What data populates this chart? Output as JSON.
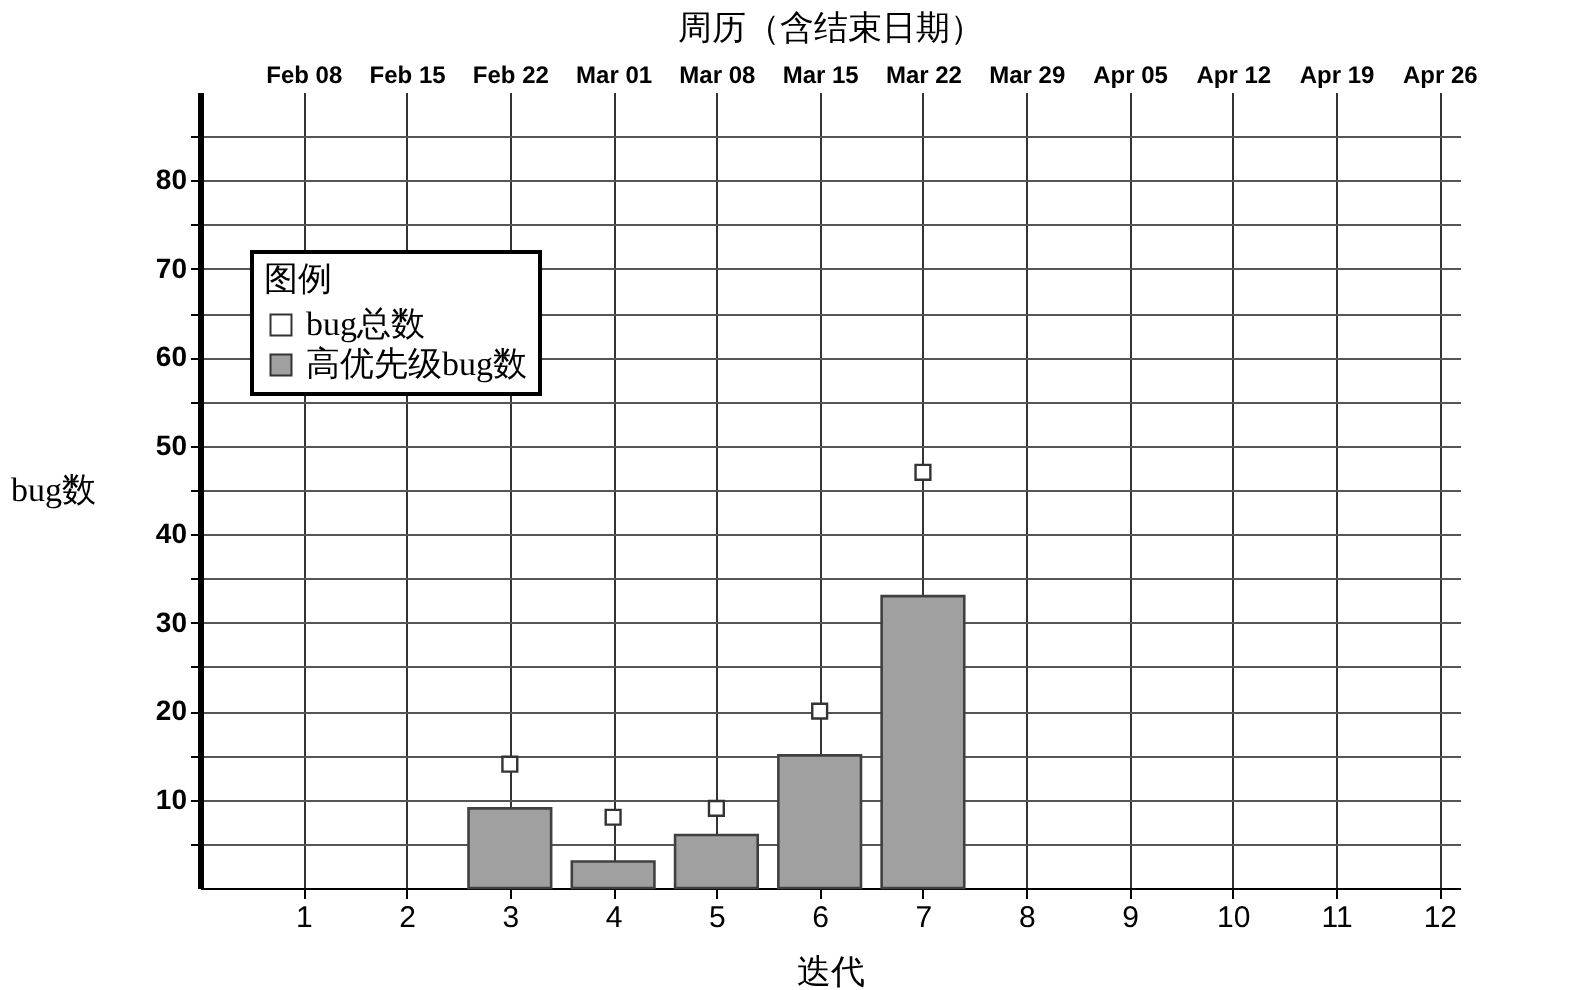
{
  "chart_data": {
    "type": "bar",
    "x2label": "周历（含结束日期）",
    "xlabel": "迭代",
    "ylabel": "bug数",
    "legend_title": "图例",
    "x": [
      3,
      4,
      5,
      6,
      7
    ],
    "series": [
      {
        "name": "bug总数",
        "type": "scatter",
        "marker": "square",
        "color": "#ffffff",
        "values": [
          14,
          8,
          9,
          20,
          47
        ]
      },
      {
        "name": "高优先级bug数",
        "type": "bar",
        "color": "#a0a0a0",
        "values": [
          9,
          3,
          6,
          15,
          33
        ]
      }
    ],
    "xlim": [
      0,
      12.2
    ],
    "xticks": [
      1,
      2,
      3,
      4,
      5,
      6,
      7,
      8,
      9,
      10,
      11,
      12
    ],
    "x2lim": [
      "--02-01",
      "--04-27T09:36"
    ],
    "x2ticks": [
      {
        "value": "--02-08",
        "label": "Feb 08"
      },
      {
        "value": "--02-15",
        "label": "Feb 15"
      },
      {
        "value": "--02-22",
        "label": "Feb 22"
      },
      {
        "value": "--03-01",
        "label": "Mar 01"
      },
      {
        "value": "--03-08",
        "label": "Mar 08"
      },
      {
        "value": "--03-15",
        "label": "Mar 15"
      },
      {
        "value": "--03-22",
        "label": "Mar 22"
      },
      {
        "value": "--03-29",
        "label": "Mar 29"
      },
      {
        "value": "--04-05",
        "label": "Apr 05"
      },
      {
        "value": "--04-12",
        "label": "Apr 12"
      },
      {
        "value": "--04-19",
        "label": "Apr 19"
      },
      {
        "value": "--04-26",
        "label": "Apr 26"
      }
    ],
    "ylim": [
      0,
      90
    ],
    "yticks": [
      {
        "value": 5,
        "label": null
      },
      10,
      {
        "value": 15,
        "label": null
      },
      20,
      {
        "value": 25,
        "label": null
      },
      30,
      {
        "value": 35,
        "label": null
      },
      40,
      {
        "value": 45,
        "label": null
      },
      50,
      {
        "value": 55,
        "label": null
      },
      60,
      {
        "value": 65,
        "label": null
      },
      70,
      {
        "value": 75,
        "label": null
      },
      80,
      {
        "value": 85,
        "label": null
      }
    ],
    "grid": true,
    "legend": "top left"
  }
}
